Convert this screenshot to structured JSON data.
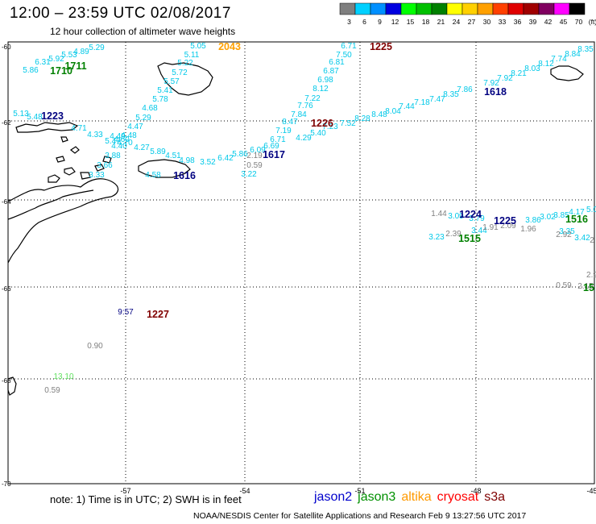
{
  "header": {
    "title": "12:00 – 23:59 UTC 02/08/2017",
    "subtitle": "12 hour collection of altimeter wave heights"
  },
  "color_scale": {
    "unit": "(ft)",
    "bins": [
      {
        "label": "3",
        "color": "#7f7f7f"
      },
      {
        "label": "6",
        "color": "#00d0ff"
      },
      {
        "label": "9",
        "color": "#0090ff"
      },
      {
        "label": "12",
        "color": "#0000e0"
      },
      {
        "label": "15",
        "color": "#00ff00"
      },
      {
        "label": "18",
        "color": "#00c000"
      },
      {
        "label": "21",
        "color": "#008000"
      },
      {
        "label": "24",
        "color": "#ffff00"
      },
      {
        "label": "27",
        "color": "#ffd000"
      },
      {
        "label": "30",
        "color": "#ffa000"
      },
      {
        "label": "33",
        "color": "#ff4000"
      },
      {
        "label": "36",
        "color": "#e00000"
      },
      {
        "label": "39",
        "color": "#a00000"
      },
      {
        "label": "42",
        "color": "#800060"
      },
      {
        "label": "45",
        "color": "#ff00ff"
      },
      {
        "label": "70",
        "color": "#000000"
      }
    ]
  },
  "axes": {
    "lon_labels": [
      "-57",
      "-54",
      "-51",
      "-48",
      "-45"
    ],
    "lat_labels": [
      "-60",
      "-62",
      "-64",
      "-66",
      "-68",
      "-70"
    ]
  },
  "tracks": [
    {
      "color": "#00c8e8",
      "values": [
        "5.29",
        "4.89",
        "5.53",
        "5.92",
        "6.31",
        "5.86"
      ]
    },
    {
      "color": "#00c8e8",
      "values": [
        "5.05",
        "5.11",
        "5.22",
        "5.72",
        "5.57",
        "5.41",
        "5.78",
        "4.68",
        "5.29",
        "4.47",
        "4.48",
        "4.70",
        "4.27",
        "5.89",
        "4.51",
        "4.98",
        "3.52",
        "4.60",
        "4.40",
        "3.88",
        "3.66",
        "3.33",
        "4.58"
      ]
    },
    {
      "color": "#00c8e8",
      "values": [
        "6.71",
        "7.50",
        "6.81",
        "6.87",
        "6.98",
        "8.12",
        "7.22",
        "7.76",
        "7.84",
        "8.47",
        "7.19",
        "6.71",
        "6.69",
        "6.09",
        "5.86",
        "6.42",
        "3.22"
      ]
    },
    {
      "color": "#00c8e8",
      "values": [
        "8.35",
        "8.84",
        "7.74",
        "8.12",
        "8.03",
        "8.21",
        "7.92",
        "7.92",
        "7.86",
        "8.35",
        "7.47",
        "7.18",
        "7.44",
        "8.04",
        "8.48",
        "8.28",
        "7.52",
        "7.23",
        "5.40",
        "4.29"
      ]
    },
    {
      "color": "#00c8e8",
      "values": [
        "5.13",
        "5.48",
        "4.71",
        "4.33",
        "5.47",
        "4.49"
      ]
    },
    {
      "color": "#00c8e8",
      "values": [
        "3.09",
        "3.79",
        "3.86",
        "3.02",
        "3.85",
        "4.17",
        "5.0",
        "3.23",
        "3.44",
        "3.35",
        "3.42"
      ]
    },
    {
      "color": "#808080",
      "values": [
        "1.44",
        "2.39",
        "1.91",
        "2.09",
        "1.96",
        "2.92",
        "2",
        "2.9",
        "0.59",
        "2.15",
        "2.19",
        "0.59",
        "0.90",
        "0.59"
      ]
    },
    {
      "color": "#60e060",
      "values": [
        "13.10"
      ]
    },
    {
      "color": "#000080",
      "values": [
        "9:57"
      ]
    }
  ],
  "time_labels": [
    {
      "text": "1710",
      "color": "#008000"
    },
    {
      "text": "1711",
      "color": "#008000"
    },
    {
      "text": "2043",
      "color": "#ffa000"
    },
    {
      "text": "1225",
      "color": "#800000"
    },
    {
      "text": "1223",
      "color": "#000080"
    },
    {
      "text": "1618",
      "color": "#000080"
    },
    {
      "text": "1226",
      "color": "#800000"
    },
    {
      "text": "1617",
      "color": "#000080"
    },
    {
      "text": "1616",
      "color": "#000080"
    },
    {
      "text": "1224",
      "color": "#000080"
    },
    {
      "text": "1225",
      "color": "#000080"
    },
    {
      "text": "1516",
      "color": "#008000"
    },
    {
      "text": "1515",
      "color": "#008000"
    },
    {
      "text": "15",
      "color": "#008000"
    },
    {
      "text": "1227",
      "color": "#800000"
    }
  ],
  "footer": {
    "note": "note: 1) Time is in UTC; 2) SWH is in feet",
    "credit": "NOAA/NESDIS Center for Satellite Applications and Research    Feb  9 13:27:56 UTC 2017",
    "satellites": [
      {
        "name": "jason2",
        "color": "#0000cc"
      },
      {
        "name": "jason3",
        "color": "#009000"
      },
      {
        "name": "altika",
        "color": "#ff9900"
      },
      {
        "name": "cryosat",
        "color": "#ff0000"
      },
      {
        "name": "s3a",
        "color": "#800000"
      }
    ]
  }
}
